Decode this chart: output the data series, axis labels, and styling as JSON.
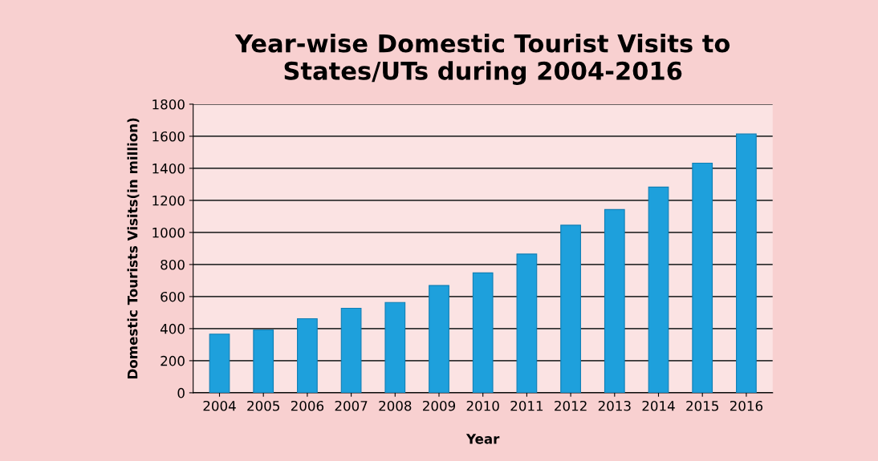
{
  "chart_data": {
    "type": "bar",
    "title": "Year-wise Domestic Tourist Visits to\nStates/UTs during 2004-2016",
    "xlabel": "Year",
    "ylabel": "Domestic Tourists Visits(in million)",
    "categories": [
      "2004",
      "2005",
      "2006",
      "2007",
      "2008",
      "2009",
      "2010",
      "2011",
      "2012",
      "2013",
      "2014",
      "2015",
      "2016"
    ],
    "values": [
      366,
      392,
      462,
      527,
      563,
      669,
      748,
      865,
      1045,
      1143,
      1283,
      1432,
      1614
    ],
    "color": "#1ea0dc",
    "ylim": [
      0,
      1800
    ],
    "yticks": [
      0,
      200,
      400,
      600,
      800,
      1000,
      1200,
      1400,
      1600,
      1800
    ],
    "grid": "y",
    "legend": false
  }
}
